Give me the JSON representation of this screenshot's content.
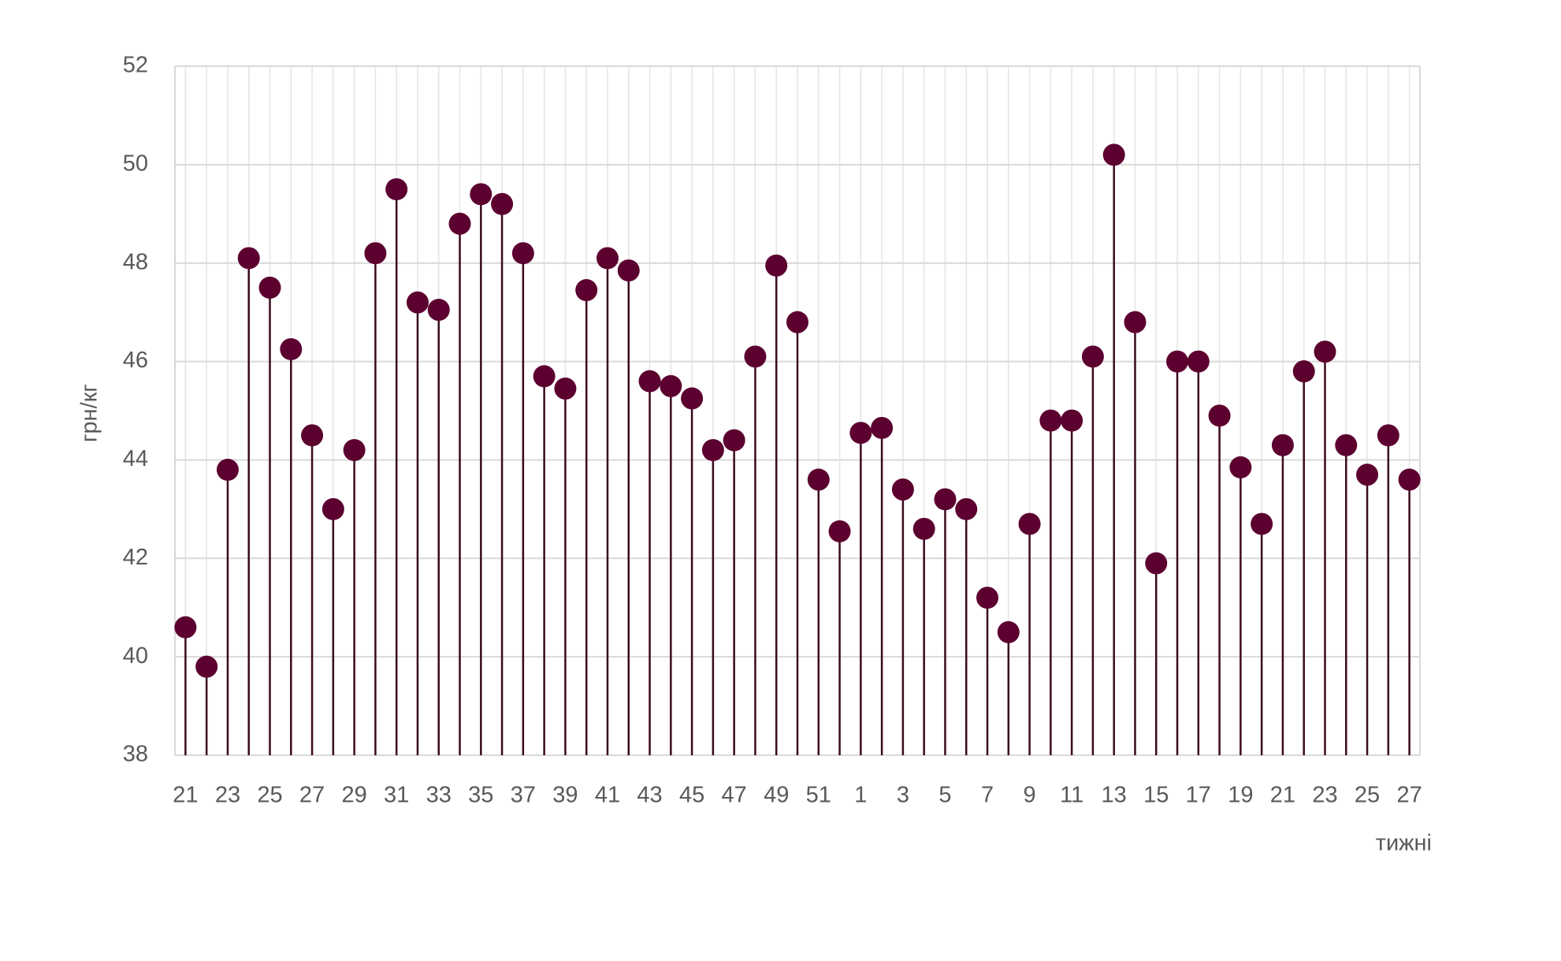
{
  "chart_data": {
    "type": "lollipop",
    "x_label": "тижні",
    "y_label": "грн/кг",
    "categories": [
      "21",
      null,
      "23",
      null,
      "25",
      null,
      "27",
      null,
      "29",
      null,
      "31",
      null,
      "33",
      null,
      "35",
      null,
      "37",
      null,
      "39",
      null,
      "41",
      null,
      "43",
      null,
      "45",
      null,
      "47",
      null,
      "49",
      null,
      "51",
      null,
      "1",
      null,
      "3",
      null,
      "5",
      null,
      "7",
      null,
      "9",
      null,
      "11",
      null,
      "13",
      null,
      "15",
      null,
      "17",
      null,
      "19",
      null,
      "21",
      null,
      "23",
      null,
      "25",
      null,
      "27"
    ],
    "values": [
      40.6,
      39.8,
      43.8,
      48.1,
      47.5,
      46.25,
      44.5,
      43.0,
      44.2,
      48.2,
      49.5,
      47.2,
      47.05,
      48.8,
      49.4,
      49.2,
      48.2,
      45.7,
      45.45,
      47.45,
      48.1,
      47.85,
      45.6,
      45.5,
      45.25,
      44.2,
      44.4,
      46.1,
      47.95,
      46.8,
      43.6,
      42.55,
      44.55,
      44.65,
      43.4,
      42.6,
      43.2,
      43.0,
      41.2,
      40.5,
      42.7,
      44.8,
      44.8,
      46.1,
      50.2,
      46.8,
      41.9,
      46.0,
      46.0,
      44.9,
      43.85,
      42.7,
      44.3,
      45.8,
      46.2,
      44.3,
      43.7,
      44.5,
      43.6
    ],
    "color": "#5c0030",
    "stem_color": "#3a0a1e",
    "ylim": [
      38,
      52
    ],
    "yticks": [
      38,
      40,
      42,
      44,
      46,
      48,
      50,
      52
    ],
    "grid": true
  }
}
